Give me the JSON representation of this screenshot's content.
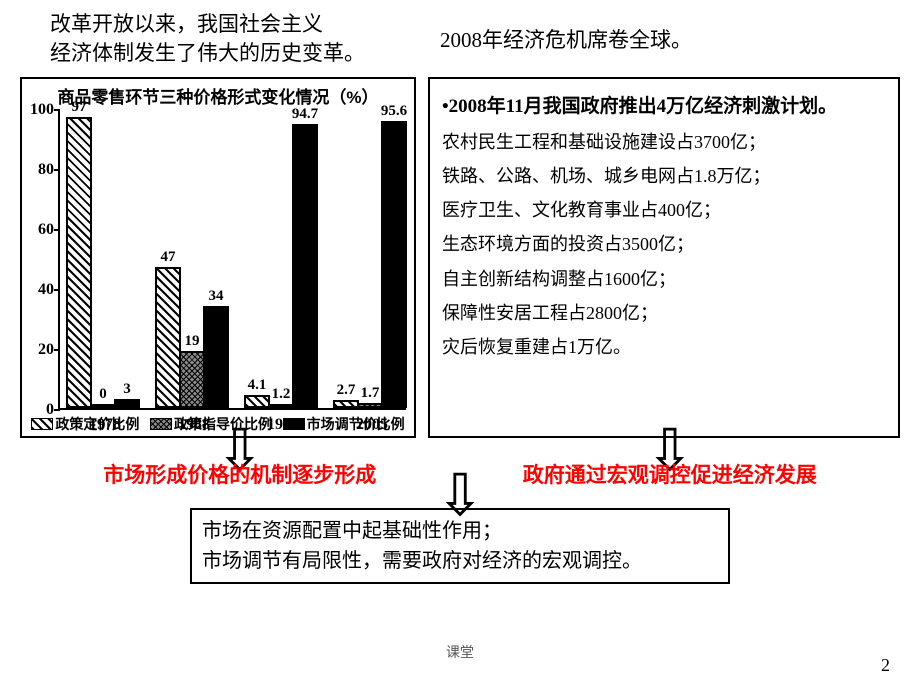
{
  "header": {
    "left_line1": "改革开放以来，我国社会主义",
    "left_line2": "经济体制发生了伟大的历史变革。",
    "right": "2008年经济危机席卷全球。"
  },
  "chart": {
    "type": "bar",
    "title": "商品零售环节三种价格形式变化情况（%）",
    "ylim": [
      0,
      100
    ],
    "ytick_step": 20,
    "yticks": [
      0,
      20,
      40,
      60,
      80,
      100
    ],
    "categories": [
      "1978",
      "1988",
      "1998",
      "2005"
    ],
    "series_names": [
      "政策定价比例",
      "政策指导价比例",
      "市场调节价比例"
    ],
    "series_patterns": [
      "hatch-diag",
      "hatch-cross",
      "solid-b"
    ],
    "data": {
      "1978": [
        97,
        0,
        3
      ],
      "1988": [
        47,
        19,
        34
      ],
      "1998": [
        4.1,
        1.2,
        94.7
      ],
      "2005": [
        2.7,
        1.7,
        95.6
      ]
    },
    "bar_labels": {
      "1978": [
        "97",
        "0",
        "3"
      ],
      "1988": [
        "47",
        "19",
        "34"
      ],
      "1998": [
        "4.1",
        "1.2",
        "94.7"
      ],
      "2005": [
        "2.7",
        "1.7",
        "95.6"
      ]
    },
    "colors": {
      "border": "#000000",
      "bg": "#ffffff"
    }
  },
  "textbox": {
    "headline_bullet": "•",
    "headline": "2008年11月我国政府推出4万亿经济刺激计划。",
    "lines": [
      "农村民生工程和基础设施建设占3700亿；",
      "铁路、公路、机场、城乡电网占1.8万亿；",
      "医疗卫生、文化教育事业占400亿；",
      "生态环境方面的投资占3500亿；",
      "自主创新结构调整占1600亿；",
      "保障性安居工程占2800亿；",
      "灾后恢复重建占1万亿。"
    ]
  },
  "conclusions": {
    "left": "市场形成价格的机制逐步形成",
    "right": "政府通过宏观调控促进经济发展"
  },
  "bottom_box": {
    "line1": "市场在资源配置中起基础性作用；",
    "line2": "市场调节有局限性，需要政府对经济的宏观调控。"
  },
  "footer": "课堂",
  "page_number": "2",
  "arrow_glyph": "⇩"
}
